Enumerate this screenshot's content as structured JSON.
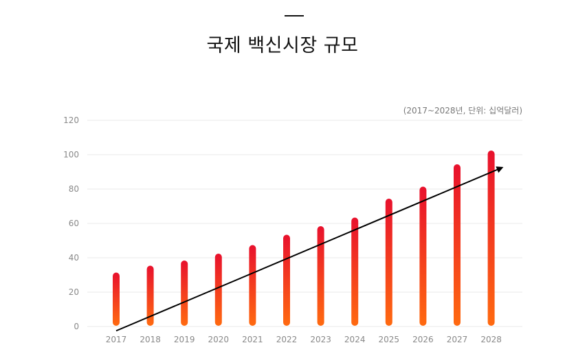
{
  "title": "국제 백신시장 규모",
  "unit_note": "(2017~2028년, 단위: 십억달러)",
  "chart_data": {
    "type": "bar",
    "title": "국제 백신시장 규모",
    "subtitle": "(2017~2028년, 단위: 십억달러)",
    "categories": [
      "2017",
      "2018",
      "2019",
      "2020",
      "2021",
      "2022",
      "2023",
      "2024",
      "2025",
      "2026",
      "2027",
      "2028"
    ],
    "values": [
      31,
      35,
      38,
      42,
      47,
      53,
      58,
      63,
      74,
      81,
      94,
      102
    ],
    "ylim": [
      0,
      120
    ],
    "yticks": [
      0,
      20,
      40,
      60,
      80,
      100,
      120
    ],
    "xlabel": "",
    "ylabel": "",
    "grid": true,
    "trend_arrow": true,
    "colors": {
      "bar_top": "#e8112d",
      "bar_bottom": "#ff6a10",
      "grid": "#e9e9e9",
      "arrow": "#000000",
      "tick_text": "#888888"
    }
  }
}
